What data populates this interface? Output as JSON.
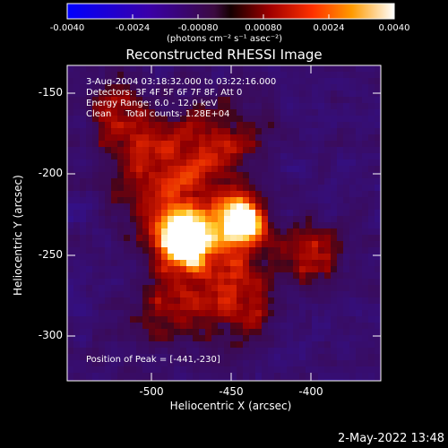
{
  "window": {
    "timestamp": "2-May-2022 13:48"
  },
  "colorbar": {
    "ticks": [
      "-0.0040",
      "-0.0024",
      "-0.00080",
      "0.00080",
      "0.0024",
      "0.0040"
    ],
    "title": "(photons cm⁻² s⁻¹ asec⁻²)"
  },
  "plot": {
    "title": "Reconstructed RHESSI Image",
    "annotations": [
      "3-Aug-2004 03:18:32.000 to 03:22:16.000",
      "Detectors: 3F 4F 5F 6F 7F 8F, Att 0",
      "Energy Range: 6.0 - 12.0 keV",
      "Clean     Total counts: 1.28E+04"
    ],
    "peak_label": "Position of Peak = [-441,-230]"
  },
  "axes": {
    "xlabel": "Heliocentric X (arcsec)",
    "ylabel": "Heliocentric Y (arcsec)",
    "xticks": [
      "-500",
      "-450",
      "-400"
    ],
    "yticks": [
      "-150",
      "-200",
      "-250",
      "-300"
    ]
  },
  "colors": {
    "background": "#000000",
    "text": "#ffffff"
  }
}
